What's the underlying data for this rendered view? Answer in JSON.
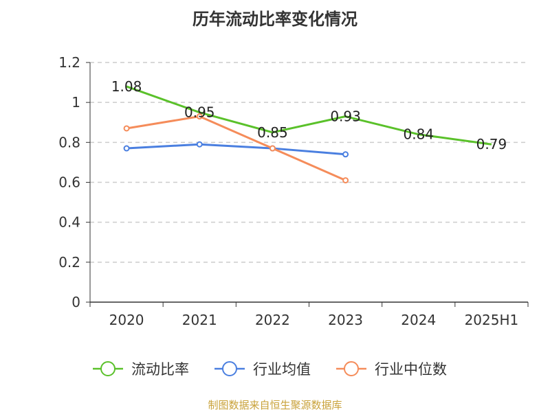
{
  "chart_data": {
    "type": "line",
    "title": "历年流动比率变化情况",
    "categories": [
      "2020",
      "2021",
      "2022",
      "2023",
      "2024",
      "2025H1"
    ],
    "ylim": [
      0,
      1.2
    ],
    "yticks": [
      "0",
      "0.2",
      "0.4",
      "0.6",
      "0.8",
      "1",
      "1.2"
    ],
    "grid": true,
    "legend_position": "bottom",
    "series": [
      {
        "name": "流动比率",
        "color": "#5ac12a",
        "values": [
          1.08,
          0.95,
          0.85,
          0.93,
          0.84,
          0.79
        ],
        "labels": [
          "1.08",
          "0.95",
          "0.85",
          "0.93",
          "0.84",
          "0.79"
        ],
        "markers": false
      },
      {
        "name": "行业均值",
        "color": "#4a7fe0",
        "values": [
          0.77,
          0.79,
          0.77,
          0.74,
          null,
          null
        ],
        "labels": [],
        "markers": true
      },
      {
        "name": "行业中位数",
        "color": "#f58c5a",
        "values": [
          0.87,
          0.93,
          0.77,
          0.61,
          null,
          null
        ],
        "labels": [],
        "markers": true
      }
    ]
  },
  "source": "制图数据来自恒生聚源数据库"
}
